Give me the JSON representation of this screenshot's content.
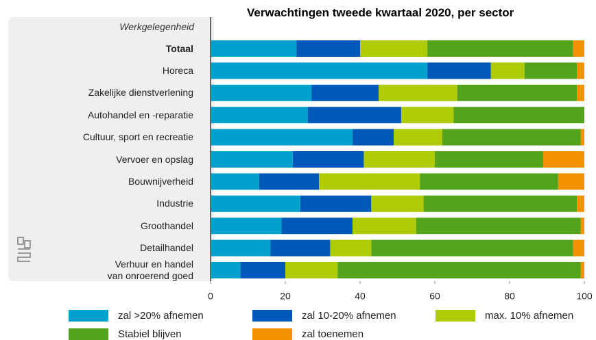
{
  "chart_data": {
    "type": "stacked-bar-horizontal",
    "title": "Verwachtingen tweede kwartaal 2020, per sector",
    "y_label": "Werkgelegenheid",
    "categories": [
      "Totaal",
      "Horeca",
      "Zakelijke dienstverlening",
      "Autohandel en -reparatie",
      "Cultuur, sport en recreatie",
      "Vervoer en opslag",
      "Bouwnijverheid",
      "Industrie",
      "Groothandel",
      "Detailhandel",
      "Verhuur en handel van onroerend goed"
    ],
    "series": [
      {
        "name": "zal >20% afnemen",
        "color": "#00a1cd",
        "values": [
          23,
          58,
          27,
          26,
          38,
          22,
          13,
          24,
          19,
          16,
          8
        ]
      },
      {
        "name": "zal 10-20% afnemen",
        "color": "#0058b8",
        "values": [
          17,
          17,
          18,
          25,
          11,
          19,
          16,
          19,
          19,
          16,
          12
        ]
      },
      {
        "name": "max. 10% afnemen",
        "color": "#afcb05",
        "values": [
          18,
          9,
          21,
          14,
          13,
          19,
          27,
          14,
          17,
          11,
          14
        ]
      },
      {
        "name": "Stabiel blijven",
        "color": "#53a31d",
        "values": [
          39,
          14,
          32,
          35,
          37,
          29,
          37,
          41,
          44,
          54,
          65
        ]
      },
      {
        "name": "zal toenemen",
        "color": "#f39200",
        "values": [
          3,
          2,
          2,
          0,
          1,
          11,
          7,
          2,
          1,
          3,
          1
        ]
      }
    ],
    "xlim": [
      0,
      100
    ],
    "xticks": [
      0,
      20,
      40,
      60,
      80,
      100
    ]
  }
}
